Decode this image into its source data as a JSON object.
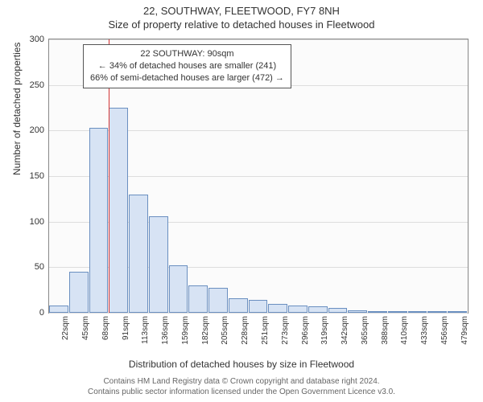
{
  "header": {
    "address": "22, SOUTHWAY, FLEETWOOD, FY7 8NH",
    "subtitle": "Size of property relative to detached houses in Fleetwood"
  },
  "chart": {
    "type": "histogram",
    "background_color": "#fbfbfb",
    "border_color": "#888888",
    "grid_color": "#dddddd",
    "bar_fill": "#d7e3f4",
    "bar_stroke": "#6a8fc0",
    "marker_color": "#d33333",
    "ylabel": "Number of detached properties",
    "xlabel": "Distribution of detached houses by size in Fleetwood",
    "label_fontsize": 12,
    "tick_fontsize": 11,
    "ylim": [
      0,
      300
    ],
    "yticks": [
      0,
      50,
      100,
      150,
      200,
      250,
      300
    ],
    "categories": [
      "22sqm",
      "45sqm",
      "68sqm",
      "91sqm",
      "113sqm",
      "136sqm",
      "159sqm",
      "182sqm",
      "205sqm",
      "228sqm",
      "251sqm",
      "273sqm",
      "296sqm",
      "319sqm",
      "342sqm",
      "365sqm",
      "388sqm",
      "410sqm",
      "433sqm",
      "456sqm",
      "479sqm"
    ],
    "values": [
      8,
      45,
      203,
      225,
      130,
      106,
      52,
      30,
      27,
      16,
      14,
      10,
      8,
      7,
      5,
      3,
      1,
      0,
      0,
      0,
      1
    ],
    "marker_bin_index": 3,
    "marker_position_in_bin": 0.0
  },
  "annotation": {
    "line1": "22 SOUTHWAY: 90sqm",
    "line2": "← 34% of detached houses are smaller (241)",
    "line3": "66% of semi-detached houses are larger (472) →"
  },
  "footer": {
    "line1": "Contains HM Land Registry data © Crown copyright and database right 2024.",
    "line2": "Contains public sector information licensed under the Open Government Licence v3.0."
  }
}
